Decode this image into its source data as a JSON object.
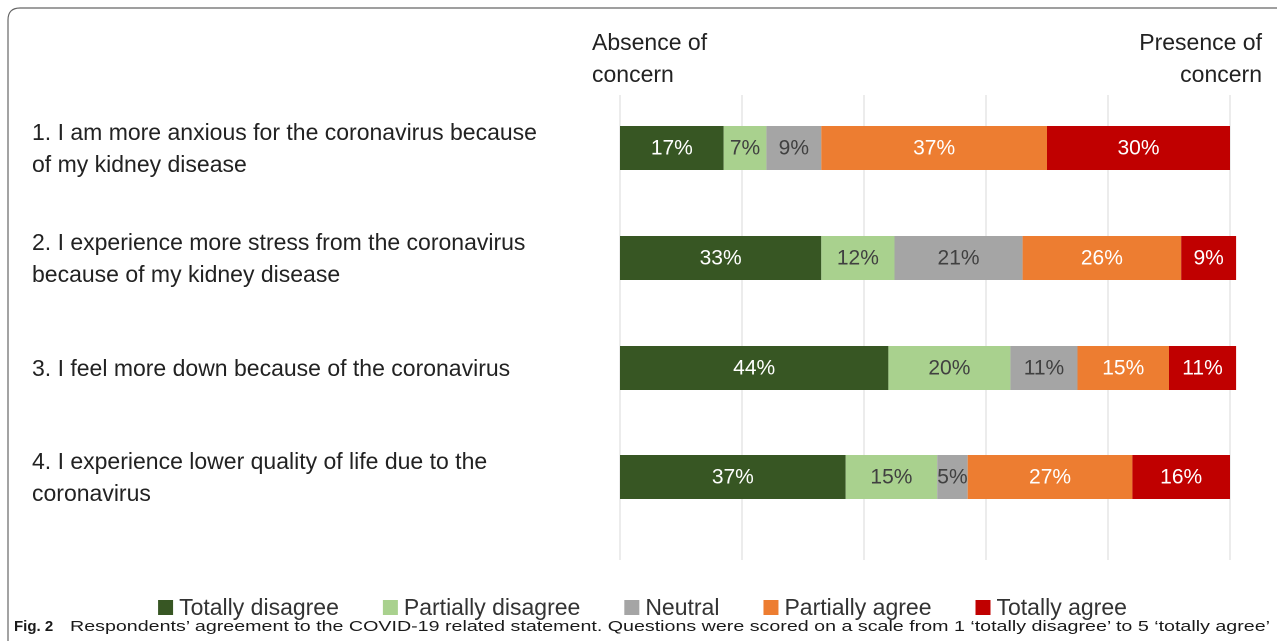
{
  "chart_data": {
    "type": "stacked-bar-horizontal",
    "annotations": [
      "Absence of concern",
      "Presence of concern"
    ],
    "categories": [
      "1. I am more anxious for the coronavirus because of my kidney disease",
      "2. I experience more stress from the coronavirus because of my kidney disease",
      "3. I feel more down because of the coronavirus",
      "4. I experience lower quality of life due to the coronavirus"
    ],
    "series": [
      {
        "name": "Totally disagree",
        "color": "#375623",
        "label_color": "#ffffff",
        "values": [
          17,
          33,
          44,
          37
        ],
        "value_labels": [
          "17%",
          "33%",
          "44%",
          "37%"
        ]
      },
      {
        "name": "Partially disagree",
        "color": "#a9d18e",
        "label_color": "#404040",
        "values": [
          7,
          12,
          20,
          15
        ],
        "value_labels": [
          "7%",
          "12%",
          "20%",
          "15%"
        ]
      },
      {
        "name": "Neutral",
        "color": "#a5a5a5",
        "label_color": "#404040",
        "values": [
          9,
          21,
          11,
          5
        ],
        "value_labels": [
          "9%",
          "21%",
          "11%",
          "5%"
        ]
      },
      {
        "name": "Partially agree",
        "color": "#ed7d31",
        "label_color": "#ffffff",
        "values": [
          37,
          26,
          15,
          27
        ],
        "value_labels": [
          "37%",
          "26%",
          "15%",
          "27%"
        ]
      },
      {
        "name": "Totally agree",
        "color": "#c00000",
        "label_color": "#ffffff",
        "values": [
          30,
          9,
          11,
          16
        ],
        "value_labels": [
          "30%",
          "9%",
          "11%",
          "16%"
        ]
      }
    ],
    "xlim": [
      0,
      100
    ],
    "xticks": [
      0,
      20,
      40,
      60,
      80,
      100
    ],
    "grid": true,
    "legend": "bottom",
    "caption_label": "Fig. 2",
    "caption": "Respondents’ agreement to the COVID-19 related statement. Questions were scored on a scale from 1 ‘totally disagree’ to 5 ‘totally agree’"
  }
}
